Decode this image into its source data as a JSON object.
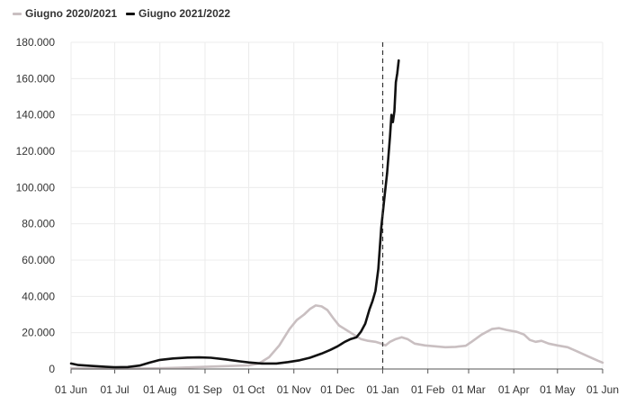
{
  "chart_data": {
    "type": "line",
    "title": "",
    "xlabel": "",
    "ylabel": "",
    "legend_position": "top-left",
    "grid": true,
    "x_ticks": [
      "01 Jun",
      "01 Jul",
      "01 Aug",
      "01 Sep",
      "01 Oct",
      "01 Nov",
      "01 Dec",
      "01 Jan",
      "01 Feb",
      "01 Mar",
      "01 Apr",
      "01 May",
      "01 Jun"
    ],
    "y_ticks": [
      "0",
      "20.000",
      "40.000",
      "60.000",
      "80.000",
      "100.000",
      "120.000",
      "140.000",
      "160.000",
      "180.000"
    ],
    "ylim": [
      0,
      180000
    ],
    "xlim": [
      "06-01",
      "06-01 (+1 year)"
    ],
    "reference_line": {
      "x": "01 Jan",
      "style": "dashed"
    },
    "series": [
      {
        "name": "Giugno 2020/2021",
        "color": "#c9bfc1",
        "points": [
          [
            "01 Jun",
            500
          ],
          [
            "10 Jun",
            300
          ],
          [
            "20 Jun",
            250
          ],
          [
            "01 Jul",
            200
          ],
          [
            "15 Jul",
            250
          ],
          [
            "01 Aug",
            400
          ],
          [
            "15 Aug",
            700
          ],
          [
            "01 Sep",
            1200
          ],
          [
            "15 Sep",
            1600
          ],
          [
            "01 Oct",
            2000
          ],
          [
            "08 Oct",
            3000
          ],
          [
            "15 Oct",
            6500
          ],
          [
            "22 Oct",
            13000
          ],
          [
            "29 Oct",
            22000
          ],
          [
            "03 Nov",
            27000
          ],
          [
            "08 Nov",
            30000
          ],
          [
            "12 Nov",
            33000
          ],
          [
            "16 Nov",
            35000
          ],
          [
            "20 Nov",
            34500
          ],
          [
            "24 Nov",
            32500
          ],
          [
            "28 Nov",
            28000
          ],
          [
            "02 Dec",
            24000
          ],
          [
            "07 Dec",
            21500
          ],
          [
            "12 Dec",
            19000
          ],
          [
            "17 Dec",
            16500
          ],
          [
            "22 Dec",
            15500
          ],
          [
            "27 Dec",
            15000
          ],
          [
            "31 Dec",
            14000
          ],
          [
            "03 Jan",
            13000
          ],
          [
            "06 Jan",
            15000
          ],
          [
            "10 Jan",
            16500
          ],
          [
            "14 Jan",
            17500
          ],
          [
            "18 Jan",
            16500
          ],
          [
            "23 Jan",
            14000
          ],
          [
            "30 Jan",
            13000
          ],
          [
            "06 Feb",
            12500
          ],
          [
            "13 Feb",
            12000
          ],
          [
            "20 Feb",
            12200
          ],
          [
            "27 Feb",
            12800
          ],
          [
            "03 Mar",
            15000
          ],
          [
            "10 Mar",
            19000
          ],
          [
            "17 Mar",
            22000
          ],
          [
            "22 Mar",
            22500
          ],
          [
            "27 Mar",
            21500
          ],
          [
            "03 Apr",
            20500
          ],
          [
            "08 Apr",
            19000
          ],
          [
            "12 Apr",
            16000
          ],
          [
            "16 Apr",
            15000
          ],
          [
            "20 Apr",
            15500
          ],
          [
            "25 Apr",
            14000
          ],
          [
            "01 May",
            13000
          ],
          [
            "08 May",
            12000
          ],
          [
            "15 May",
            9500
          ],
          [
            "22 May",
            7000
          ],
          [
            "29 May",
            4500
          ],
          [
            "01 Jun",
            3500
          ]
        ]
      },
      {
        "name": "Giugno 2021/2022",
        "color": "#111111",
        "points": [
          [
            "01 Jun",
            3000
          ],
          [
            "06 Jun",
            2200
          ],
          [
            "15 Jun",
            1700
          ],
          [
            "25 Jun",
            1200
          ],
          [
            "01 Jul",
            1000
          ],
          [
            "10 Jul",
            1100
          ],
          [
            "18 Jul",
            1900
          ],
          [
            "25 Jul",
            3500
          ],
          [
            "01 Aug",
            5000
          ],
          [
            "10 Aug",
            5800
          ],
          [
            "20 Aug",
            6300
          ],
          [
            "28 Aug",
            6400
          ],
          [
            "05 Sep",
            6200
          ],
          [
            "15 Sep",
            5300
          ],
          [
            "25 Sep",
            4200
          ],
          [
            "01 Oct",
            3600
          ],
          [
            "10 Oct",
            3000
          ],
          [
            "20 Oct",
            3000
          ],
          [
            "28 Oct",
            3800
          ],
          [
            "05 Nov",
            4800
          ],
          [
            "12 Nov",
            6200
          ],
          [
            "20 Nov",
            8500
          ],
          [
            "26 Nov",
            10500
          ],
          [
            "01 Dec",
            12500
          ],
          [
            "06 Dec",
            15000
          ],
          [
            "10 Dec",
            16500
          ],
          [
            "14 Dec",
            17500
          ],
          [
            "17 Dec",
            20500
          ],
          [
            "20 Dec",
            25000
          ],
          [
            "23 Dec",
            33000
          ],
          [
            "25 Dec",
            37500
          ],
          [
            "27 Dec",
            43000
          ],
          [
            "29 Dec",
            55000
          ],
          [
            "31 Dec",
            78000
          ],
          [
            "02 Jan",
            93000
          ],
          [
            "04 Jan",
            108000
          ],
          [
            "06 Jan",
            128000
          ],
          [
            "07 Jan",
            140000
          ],
          [
            "08 Jan",
            136000
          ],
          [
            "09 Jan",
            142000
          ],
          [
            "10 Jan",
            158000
          ],
          [
            "11 Jan",
            163000
          ],
          [
            "12 Jan",
            170000
          ]
        ]
      }
    ]
  }
}
